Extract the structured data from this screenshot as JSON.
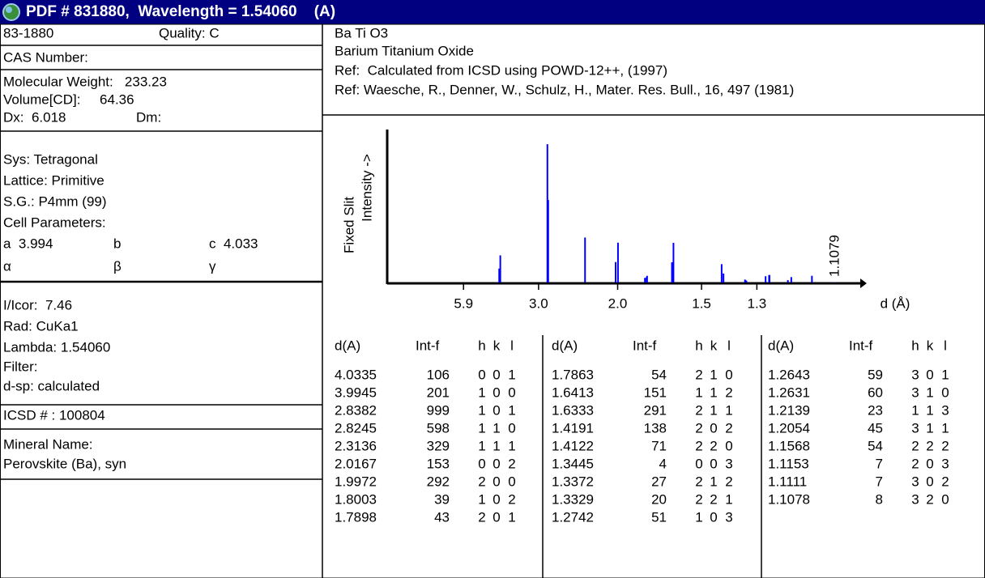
{
  "header": {
    "title": "PDF # 831880,  Wavelength = 1.54060    (A)"
  },
  "card": {
    "number": "83-1880",
    "quality": "Quality: C",
    "cas": "CAS Number:",
    "molecular_weight": "Molecular Weight:   233.23",
    "volume": "Volume[CD]:     64.36",
    "dx": "Dx:  6.018",
    "dm": "Dm:",
    "system": "Sys: Tetragonal",
    "lattice": "Lattice: Primitive",
    "space_group": "S.G.: P4mm (99)",
    "cell_parameters": "Cell Parameters:",
    "a": "a  3.994",
    "b": "b",
    "c": "c  4.033",
    "alpha": "α",
    "beta": "β",
    "gamma": "γ",
    "i_icor": "I/Icor:  7.46",
    "radiation": "Rad: CuKa1",
    "lambda": "Lambda: 1.54060",
    "filter": "Filter:",
    "d_sp": "d-sp: calculated",
    "icsd": "ICSD # : 100804",
    "mineral_label": "Mineral Name:",
    "mineral": "Perovskite (Ba), syn"
  },
  "compound": {
    "formula": "Ba Ti O3",
    "name": "Barium Titanium Oxide",
    "refs": [
      "Ref:  Calculated from ICSD using POWD-12++, (1997)",
      "Ref: Waesche, R., Denner, W., Schulz, H., Mater. Res. Bull., 16, 497 (1981)"
    ]
  },
  "chart_data": {
    "type": "stick",
    "xscale": "two-theta",
    "wavelength": 1.5406,
    "xlim": [
      0,
      93
    ],
    "ylim": [
      0,
      1000
    ],
    "xticks": [
      5.9,
      {
        "value": 3,
        "label": "3.0"
      },
      {
        "value": 2,
        "label": "2.0"
      },
      1.5,
      1.3
    ],
    "xlabel": "d (Å)",
    "ylabel": [
      "Fixed Slit",
      "Intensity ->"
    ],
    "annotation": {
      "x": 1.1079,
      "label": "1.1079"
    },
    "color": "#0000ff"
  },
  "table": {
    "columns": [
      "d(A)",
      "Int-f",
      "h",
      "k",
      "l"
    ],
    "rows": [
      [
        4.0335,
        106,
        0,
        0,
        1
      ],
      [
        3.9945,
        201,
        1,
        0,
        0
      ],
      [
        2.8382,
        999,
        1,
        0,
        1
      ],
      [
        2.8245,
        598,
        1,
        1,
        0
      ],
      [
        2.3136,
        329,
        1,
        1,
        1
      ],
      [
        2.0167,
        153,
        0,
        0,
        2
      ],
      [
        1.9972,
        292,
        2,
        0,
        0
      ],
      [
        1.8003,
        39,
        1,
        0,
        2
      ],
      [
        1.7898,
        43,
        2,
        0,
        1
      ],
      [
        1.7863,
        54,
        2,
        1,
        0
      ],
      [
        1.6413,
        151,
        1,
        1,
        2
      ],
      [
        1.6333,
        291,
        2,
        1,
        1
      ],
      [
        1.4191,
        138,
        2,
        0,
        2
      ],
      [
        1.4122,
        71,
        2,
        2,
        0
      ],
      [
        1.3445,
        4,
        0,
        0,
        3
      ],
      [
        1.3372,
        27,
        2,
        1,
        2
      ],
      [
        1.3329,
        20,
        2,
        2,
        1
      ],
      [
        1.2742,
        51,
        1,
        0,
        3
      ],
      [
        1.2643,
        59,
        3,
        0,
        1
      ],
      [
        1.2631,
        60,
        3,
        1,
        0
      ],
      [
        1.2139,
        23,
        1,
        1,
        3
      ],
      [
        1.2054,
        45,
        3,
        1,
        1
      ],
      [
        1.1568,
        54,
        2,
        2,
        2
      ],
      [
        1.1153,
        7,
        2,
        0,
        3
      ],
      [
        1.1111,
        7,
        3,
        0,
        2
      ],
      [
        1.1078,
        8,
        3,
        2,
        0
      ]
    ]
  }
}
